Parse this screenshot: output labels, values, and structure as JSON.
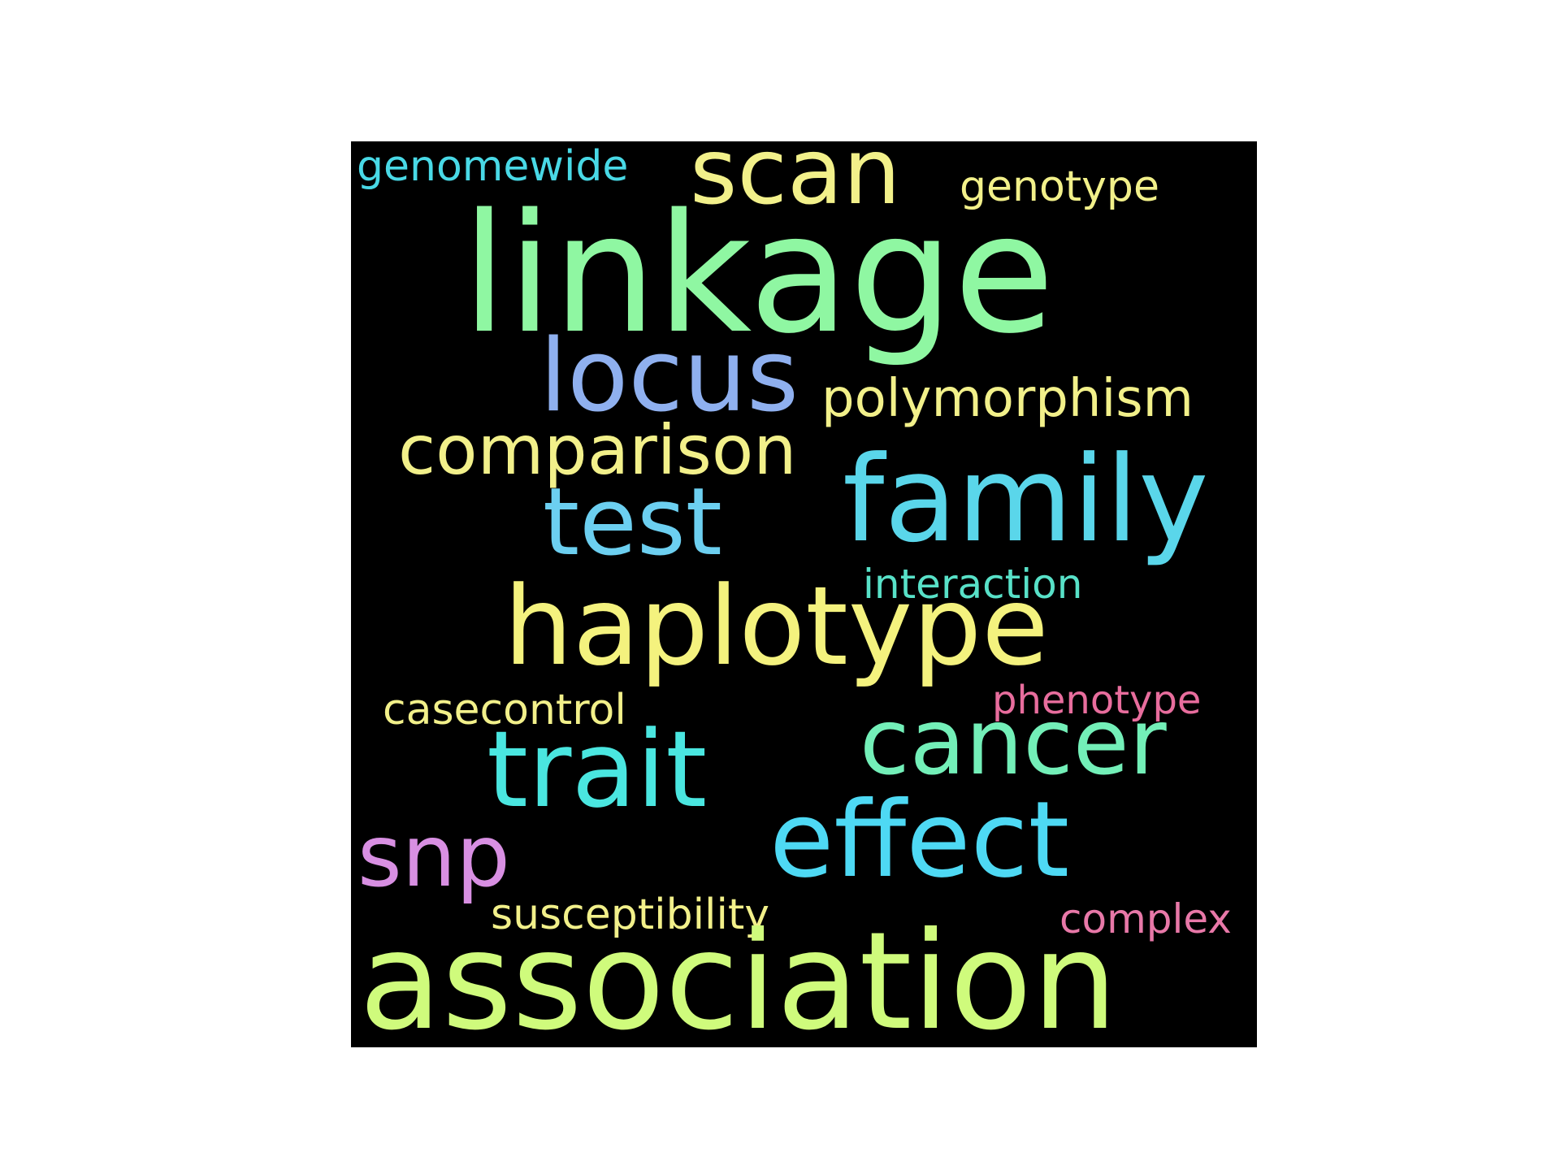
{
  "word_cloud": {
    "background": "#000000",
    "words": {
      "genomewide": "genomewide",
      "scan": "scan",
      "genotype": "genotype",
      "linkage": "linkage",
      "locus": "locus",
      "polymorphism": "polymorphism",
      "comparison": "comparison",
      "family": "family",
      "test": "test",
      "interaction": "interaction",
      "haplotype": "haplotype",
      "phenotype": "phenotype",
      "casecontrol": "casecontrol",
      "cancer": "cancer",
      "trait": "trait",
      "effect": "effect",
      "snp": "snp",
      "susceptibility": "susceptibility",
      "complex": "complex",
      "association": "association"
    }
  }
}
